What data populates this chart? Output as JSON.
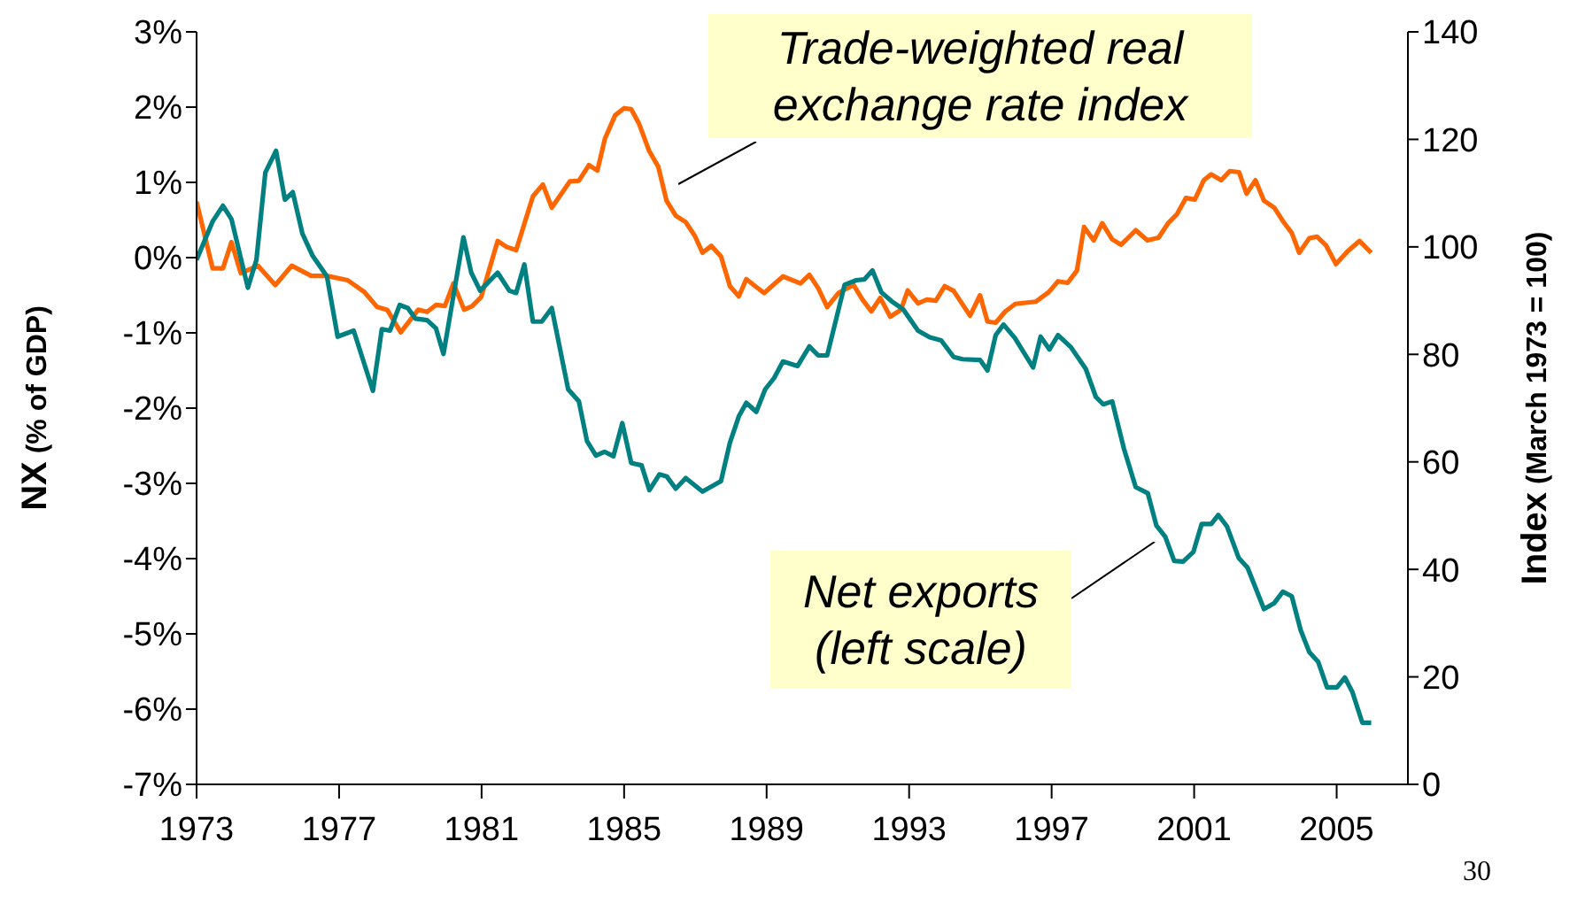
{
  "chart_data": {
    "type": "line",
    "ylabel": "NX (% of GDP)",
    "y2label": "Index (March 1973 = 100)",
    "xlim": [
      1973,
      2007
    ],
    "xticks": [
      1973,
      1977,
      1981,
      1985,
      1989,
      1993,
      1997,
      2001,
      2005
    ],
    "ylim": [
      -7,
      3
    ],
    "yticks": [
      {
        "value": -7,
        "label": "-7%"
      },
      {
        "value": -6,
        "label": "-6%"
      },
      {
        "value": -5,
        "label": "-5%"
      },
      {
        "value": -4,
        "label": "-4%"
      },
      {
        "value": -3,
        "label": "-3%"
      },
      {
        "value": -2,
        "label": "-2%"
      },
      {
        "value": -1,
        "label": "-1%"
      },
      {
        "value": 0,
        "label": "0%"
      },
      {
        "value": 1,
        "label": "1%"
      },
      {
        "value": 2,
        "label": "2%"
      },
      {
        "value": 3,
        "label": "3%"
      }
    ],
    "y2lim": [
      0,
      140
    ],
    "y2ticks": [
      0,
      20,
      40,
      60,
      80,
      100,
      120,
      140
    ],
    "legend": false,
    "marker": "none",
    "line_style": "solid",
    "annotations": [
      "30"
    ],
    "series": [
      {
        "name": "Trade-weighted real exchange rate index",
        "color": "#ff6600",
        "axis": "y2",
        "x": [
          1973.0,
          1973.45,
          1973.74,
          1973.98,
          1974.24,
          1974.72,
          1975.21,
          1975.67,
          1976.22,
          1976.66,
          1977.24,
          1977.71,
          1978.07,
          1978.35,
          1978.73,
          1979.22,
          1979.47,
          1979.72,
          1979.97,
          1980.21,
          1980.51,
          1980.74,
          1980.99,
          1981.45,
          1981.7,
          1981.97,
          1982.44,
          1982.72,
          1982.97,
          1983.48,
          1983.73,
          1984.01,
          1984.25,
          1984.46,
          1984.75,
          1985.0,
          1985.2,
          1985.42,
          1985.7,
          1985.96,
          1986.19,
          1986.45,
          1986.73,
          1986.99,
          1987.2,
          1987.45,
          1987.72,
          1987.97,
          1988.22,
          1988.43,
          1988.68,
          1988.93,
          1989.18,
          1989.46,
          1989.95,
          1990.2,
          1990.45,
          1990.7,
          1991.03,
          1991.44,
          1991.69,
          1991.94,
          1992.19,
          1992.47,
          1992.77,
          1992.96,
          1993.25,
          1993.5,
          1993.75,
          1994.0,
          1994.25,
          1994.71,
          1994.99,
          1995.2,
          1995.43,
          1995.7,
          1995.98,
          1996.55,
          1996.92,
          1997.18,
          1997.45,
          1997.71,
          1997.91,
          1998.18,
          1998.42,
          1998.7,
          1998.95,
          1999.36,
          1999.69,
          2000.0,
          2000.27,
          2000.52,
          2000.77,
          2001.02,
          2001.27,
          2001.48,
          2001.76,
          2002.0,
          2002.26,
          2002.47,
          2002.72,
          2002.96,
          2003.25,
          2003.49,
          2003.74,
          2003.95,
          2004.23,
          2004.45,
          2004.7,
          2004.98,
          2005.31,
          2005.64,
          2005.97
        ],
        "values": [
          108.4,
          96.0,
          96.0,
          100.9,
          95.1,
          96.5,
          92.9,
          96.5,
          94.6,
          94.6,
          93.8,
          91.6,
          88.8,
          88.3,
          84.1,
          88.3,
          87.9,
          89.2,
          89.0,
          93.2,
          88.3,
          89.0,
          90.7,
          101.1,
          100.0,
          99.4,
          109.4,
          111.6,
          107.3,
          112.2,
          112.3,
          115.2,
          114.2,
          120.1,
          124.5,
          125.8,
          125.6,
          122.9,
          117.9,
          114.9,
          108.6,
          105.8,
          104.6,
          102.0,
          98.9,
          100.2,
          98.2,
          92.7,
          90.8,
          94.0,
          92.7,
          91.4,
          92.9,
          94.5,
          93.2,
          94.8,
          92.3,
          88.8,
          91.5,
          92.9,
          90.2,
          88.0,
          90.5,
          87.0,
          88.3,
          91.9,
          89.5,
          90.2,
          90.0,
          92.7,
          91.8,
          87.2,
          91.0,
          86.1,
          85.9,
          88.0,
          89.4,
          89.8,
          91.6,
          93.6,
          93.3,
          95.6,
          103.7,
          101.2,
          104.4,
          101.4,
          100.4,
          103.1,
          101.2,
          101.7,
          104.4,
          106.1,
          109.1,
          108.8,
          112.4,
          113.5,
          112.4,
          114.1,
          113.9,
          109.9,
          112.4,
          108.6,
          107.3,
          104.8,
          102.6,
          98.9,
          101.6,
          101.9,
          100.3,
          96.8,
          99.2,
          101.1,
          98.9
        ]
      },
      {
        "name": "Net exports (left scale)",
        "color": "#008080",
        "x": [
          1973.0,
          1973.45,
          1973.74,
          1973.98,
          1974.44,
          1974.68,
          1974.93,
          1975.23,
          1975.48,
          1975.7,
          1975.97,
          1976.25,
          1976.66,
          1976.96,
          1977.41,
          1977.95,
          1978.2,
          1978.43,
          1978.7,
          1978.93,
          1979.14,
          1979.47,
          1979.72,
          1979.93,
          1980.49,
          1980.71,
          1980.96,
          1981.45,
          1981.78,
          1981.97,
          1982.2,
          1982.44,
          1982.69,
          1982.97,
          1983.43,
          1983.73,
          1983.96,
          1984.21,
          1984.45,
          1984.7,
          1984.95,
          1985.2,
          1985.49,
          1985.71,
          1985.99,
          1986.2,
          1986.45,
          1986.73,
          1987.2,
          1987.72,
          1987.97,
          1988.22,
          1988.43,
          1988.71,
          1988.96,
          1989.21,
          1989.46,
          1989.87,
          1990.2,
          1990.45,
          1990.7,
          1991.19,
          1991.52,
          1991.74,
          1991.97,
          1992.22,
          1992.51,
          1992.84,
          1993.25,
          1993.58,
          1993.9,
          1994.25,
          1994.5,
          1994.99,
          1995.2,
          1995.43,
          1995.65,
          1995.97,
          1996.23,
          1996.48,
          1996.69,
          1996.94,
          1997.18,
          1997.54,
          1997.96,
          1998.24,
          1998.45,
          1998.7,
          1999.03,
          1999.36,
          1999.7,
          1999.94,
          2000.19,
          2000.44,
          2000.69,
          2000.98,
          2001.21,
          2001.48,
          2001.68,
          2001.92,
          2002.25,
          2002.5,
          2002.96,
          2003.25,
          2003.49,
          2003.74,
          2003.99,
          2004.23,
          2004.48,
          2004.73,
          2005.01,
          2005.23,
          2005.44,
          2005.72,
          2005.97
        ],
        "values": [
          -0.03,
          0.48,
          0.69,
          0.51,
          -0.4,
          -0.03,
          1.13,
          1.42,
          0.77,
          0.87,
          0.32,
          0.03,
          -0.25,
          -1.05,
          -0.97,
          -1.77,
          -0.95,
          -0.97,
          -0.63,
          -0.67,
          -0.81,
          -0.83,
          -0.94,
          -1.28,
          0.27,
          -0.2,
          -0.44,
          -0.2,
          -0.44,
          -0.47,
          -0.09,
          -0.85,
          -0.85,
          -0.67,
          -1.75,
          -1.91,
          -2.44,
          -2.63,
          -2.58,
          -2.64,
          -2.2,
          -2.73,
          -2.76,
          -3.09,
          -2.88,
          -2.91,
          -3.07,
          -2.93,
          -3.11,
          -2.97,
          -2.46,
          -2.11,
          -1.93,
          -2.05,
          -1.75,
          -1.6,
          -1.38,
          -1.44,
          -1.18,
          -1.3,
          -1.3,
          -0.36,
          -0.3,
          -0.29,
          -0.17,
          -0.46,
          -0.58,
          -0.69,
          -0.97,
          -1.06,
          -1.1,
          -1.32,
          -1.35,
          -1.36,
          -1.5,
          -1.03,
          -0.89,
          -1.07,
          -1.27,
          -1.46,
          -1.05,
          -1.22,
          -1.03,
          -1.19,
          -1.48,
          -1.85,
          -1.95,
          -1.91,
          -2.54,
          -3.05,
          -3.13,
          -3.56,
          -3.71,
          -4.03,
          -4.04,
          -3.91,
          -3.54,
          -3.54,
          -3.42,
          -3.57,
          -3.99,
          -4.12,
          -4.67,
          -4.59,
          -4.44,
          -4.5,
          -4.95,
          -5.24,
          -5.37,
          -5.71,
          -5.71,
          -5.58,
          -5.77,
          -6.18,
          -6.18
        ]
      }
    ]
  }
}
